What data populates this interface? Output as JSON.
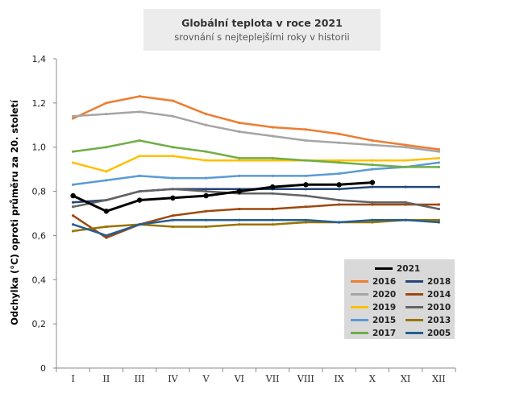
{
  "chart_data": {
    "type": "line",
    "title": "Globální teplota v roce 2021",
    "subtitle": "srovnání s nejteplejšími roky v historii",
    "ylabel": "Odchylka (°C) oproti průměru za 20. století",
    "xlabel": "",
    "ylim": [
      0,
      1.4
    ],
    "yticks": [
      "0",
      "0,2",
      "0,4",
      "0,6",
      "0,8",
      "1,0",
      "1,2",
      "1,4"
    ],
    "categories": [
      "I",
      "II",
      "III",
      "IV",
      "V",
      "VI",
      "VII",
      "VIII",
      "IX",
      "X",
      "XI",
      "XII"
    ],
    "grid": false,
    "legend_position": "bottom-right",
    "series": [
      {
        "name": "2021",
        "color": "#000000",
        "values": [
          0.78,
          0.71,
          0.76,
          0.77,
          0.78,
          0.8,
          0.82,
          0.83,
          0.83,
          0.84,
          null,
          null
        ]
      },
      {
        "name": "2016",
        "color": "#ed7d31",
        "values": [
          1.13,
          1.2,
          1.23,
          1.21,
          1.15,
          1.11,
          1.09,
          1.08,
          1.06,
          1.03,
          1.01,
          0.99
        ]
      },
      {
        "name": "2020",
        "color": "#a5a5a5",
        "values": [
          1.14,
          1.15,
          1.16,
          1.14,
          1.1,
          1.07,
          1.05,
          1.03,
          1.02,
          1.01,
          1.0,
          0.98
        ]
      },
      {
        "name": "2019",
        "color": "#ffc000",
        "values": [
          0.93,
          0.89,
          0.96,
          0.96,
          0.94,
          0.94,
          0.94,
          0.94,
          0.94,
          0.94,
          0.94,
          0.95
        ]
      },
      {
        "name": "2015",
        "color": "#5b9bd5",
        "values": [
          0.83,
          0.85,
          0.87,
          0.86,
          0.86,
          0.87,
          0.87,
          0.87,
          0.88,
          0.9,
          0.91,
          0.93
        ]
      },
      {
        "name": "2017",
        "color": "#70ad47",
        "values": [
          0.98,
          1.0,
          1.03,
          1.0,
          0.98,
          0.95,
          0.95,
          0.94,
          0.93,
          0.92,
          0.91,
          0.91
        ]
      },
      {
        "name": "2018",
        "color": "#264478",
        "values": [
          0.75,
          0.76,
          0.8,
          0.81,
          0.81,
          0.81,
          0.81,
          0.81,
          0.81,
          0.82,
          0.82,
          0.82
        ]
      },
      {
        "name": "2014",
        "color": "#9e480e",
        "values": [
          0.69,
          0.59,
          0.65,
          0.69,
          0.71,
          0.72,
          0.72,
          0.73,
          0.74,
          0.74,
          0.74,
          0.74
        ]
      },
      {
        "name": "2010",
        "color": "#636363",
        "values": [
          0.73,
          0.76,
          0.8,
          0.81,
          0.8,
          0.79,
          0.79,
          0.78,
          0.76,
          0.75,
          0.75,
          0.72
        ]
      },
      {
        "name": "2013",
        "color": "#997300",
        "values": [
          0.62,
          0.64,
          0.65,
          0.64,
          0.64,
          0.65,
          0.65,
          0.66,
          0.66,
          0.66,
          0.67,
          0.67
        ]
      },
      {
        "name": "2005",
        "color": "#255e91",
        "values": [
          0.65,
          0.6,
          0.65,
          0.67,
          0.67,
          0.67,
          0.67,
          0.67,
          0.66,
          0.67,
          0.67,
          0.66
        ]
      }
    ]
  }
}
